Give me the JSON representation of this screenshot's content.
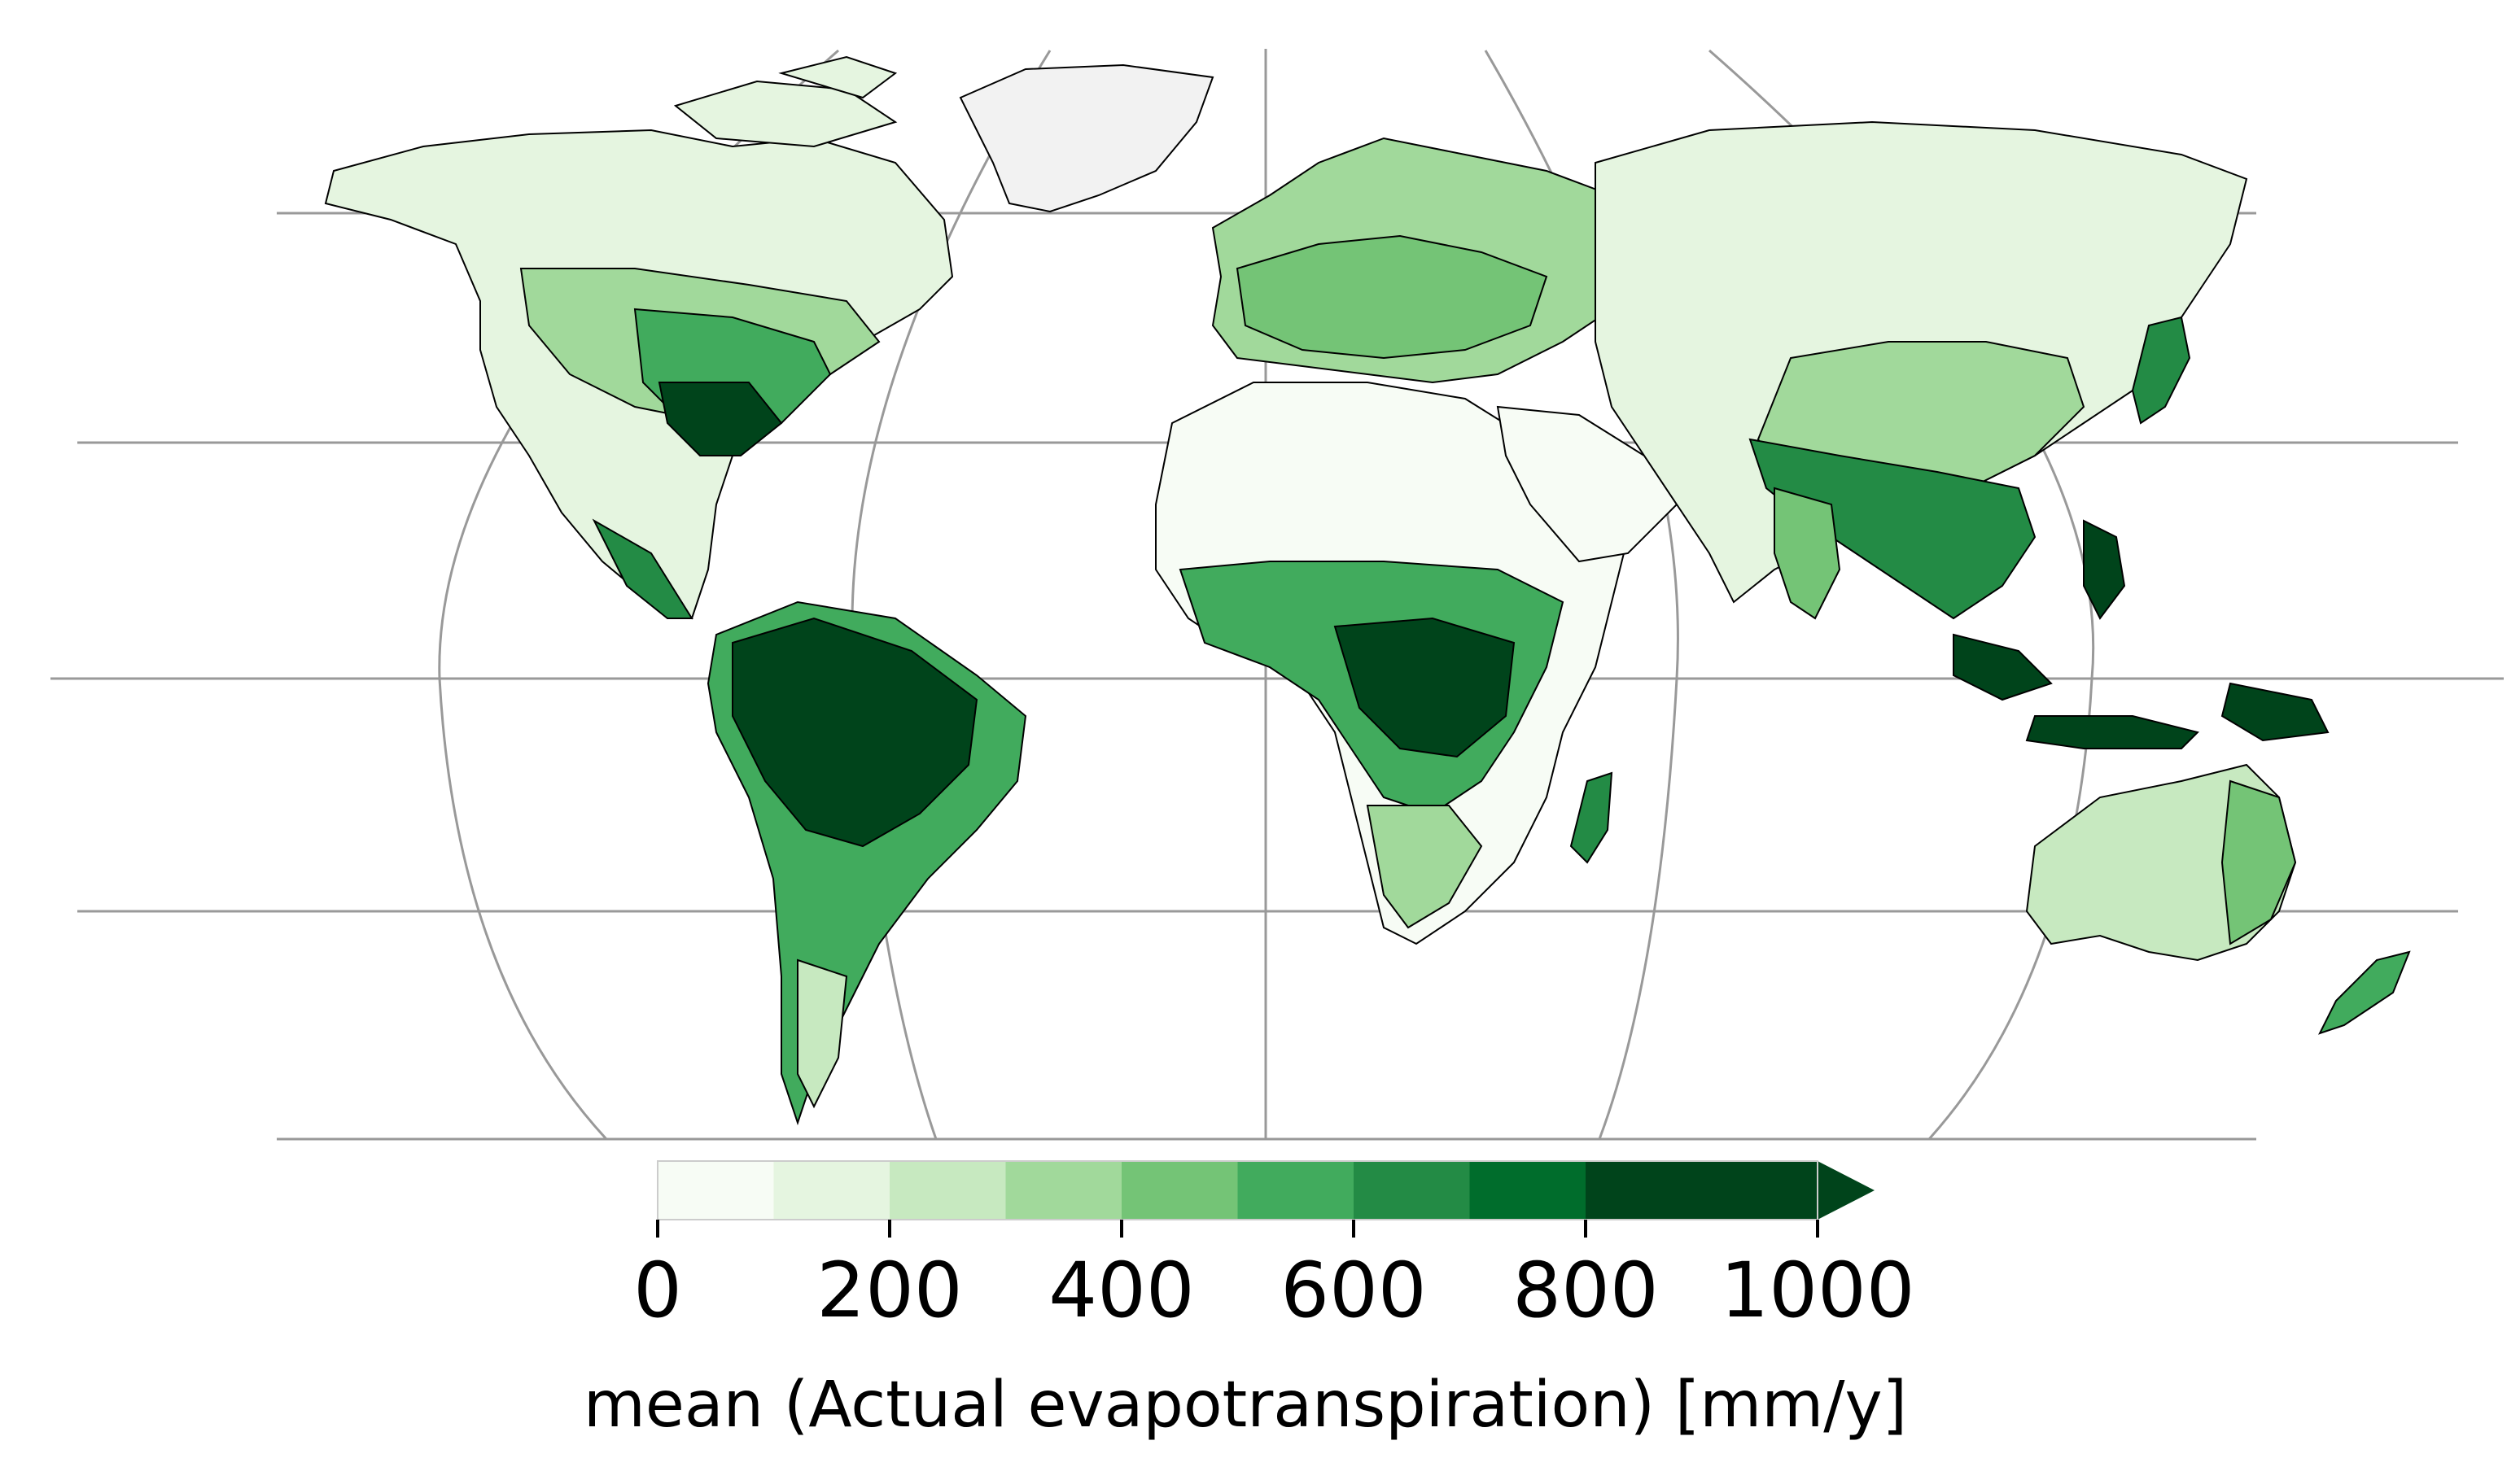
{
  "map": {
    "projection": "Robinson",
    "variable": "mean (Actual evapotranspiration)",
    "units": "mm/y",
    "land_colors": {
      "arid": "#f7fcf5",
      "semi_arid": "#c7e9c0",
      "moderate": "#74c476",
      "humid": "#238b45",
      "tropical": "#00441b",
      "ice": "#f2f2f2"
    },
    "coastline_color": "#000000",
    "graticule_color": "#999999"
  },
  "colorbar": {
    "label": "mean (Actual evapotranspiration) [mm/y]",
    "ticks": [
      "0",
      "200",
      "400",
      "600",
      "800",
      "1000"
    ],
    "min": 0,
    "max": 1000,
    "step": 100,
    "extend": "max",
    "colors": [
      "#f7fcf5",
      "#e5f5e0",
      "#c7e9c0",
      "#a1d99b",
      "#74c476",
      "#41ab5d",
      "#238b45",
      "#006d2c",
      "#00441b",
      "#00441b"
    ]
  }
}
